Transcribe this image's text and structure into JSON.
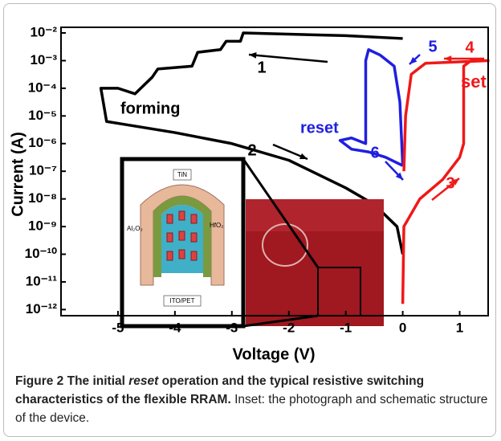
{
  "chart_data": {
    "type": "line",
    "log_y": true,
    "xlabel": "Voltage (V)",
    "ylabel": "Current (A)",
    "xlim": [
      -6,
      1.5
    ],
    "xticks": [
      -5,
      -4,
      -3,
      -2,
      -1,
      0,
      1
    ],
    "ylim": [
      0.016,
      6e-13
    ],
    "yticks": [
      {
        "value": 0.01,
        "label": "10⁻²"
      },
      {
        "value": 0.001,
        "label": "10⁻³"
      },
      {
        "value": 0.0001,
        "label": "10⁻⁴"
      },
      {
        "value": 1e-05,
        "label": "10⁻⁵"
      },
      {
        "value": 1e-06,
        "label": "10⁻⁶"
      },
      {
        "value": 1e-07,
        "label": "10⁻⁷"
      },
      {
        "value": 1e-08,
        "label": "10⁻⁸"
      },
      {
        "value": 1e-09,
        "label": "10⁻⁹"
      },
      {
        "value": 1e-10,
        "label": "10⁻¹⁰"
      },
      {
        "value": 1e-11,
        "label": "10⁻¹¹"
      },
      {
        "value": 1e-12,
        "label": "10⁻¹²"
      }
    ],
    "series": [
      {
        "name": "forming",
        "color": "#000000",
        "x": [
          0,
          -0.1,
          -0.5,
          -1,
          -2,
          -3,
          -4,
          -4.9,
          -5.2,
          -5.3,
          -5,
          -4.7,
          -4.4,
          -4.3,
          -3.7,
          -3.6,
          -3.2,
          -3.1,
          -2.85,
          -2.8,
          -1,
          0
        ],
        "values": [
          1e-10,
          1e-09,
          6.3e-09,
          2.5e-08,
          2.5e-07,
          1e-06,
          2.5e-06,
          5e-06,
          6.3e-06,
          0.0001,
          0.0001,
          6.3e-05,
          0.00025,
          0.0005,
          0.00063,
          0.002,
          0.0025,
          0.005,
          0.005,
          0.01,
          0.008,
          0.0063
        ]
      },
      {
        "name": "reset",
        "color": "#1f1fe0",
        "x": [
          0,
          -0.3,
          -0.6,
          -0.9,
          -1.1,
          -0.9,
          -0.65,
          -0.65,
          -0.6,
          -0.4,
          -0.15,
          -0.05,
          0
        ],
        "values": [
          1.6e-07,
          3.2e-07,
          5e-07,
          6.3e-07,
          1.3e-06,
          1.6e-06,
          1e-06,
          0.001,
          0.0025,
          0.0016,
          0.00063,
          3.2e-05,
          1.6e-07
        ]
      },
      {
        "name": "set",
        "color": "#f01818",
        "x": [
          0,
          0.02,
          0.3,
          0.7,
          1,
          1.07,
          1.07,
          1.2,
          1.5,
          0.4,
          0.15,
          0.05,
          0.02
        ],
        "values": [
          1.6e-12,
          1e-09,
          1e-08,
          5e-08,
          3.2e-07,
          1e-06,
          0.00063,
          0.001,
          0.001,
          0.0008,
          0.00032,
          1e-05,
          1e-07
        ]
      }
    ],
    "annotations": [
      "1",
      "2",
      "3",
      "4",
      "5",
      "6"
    ]
  },
  "inset": {
    "labels": [
      "TiN",
      "HfO₂",
      "Al₂O₃",
      "ITO/PET"
    ]
  },
  "caption": {
    "label": "Figure 2",
    "title_before": "The initial",
    "title_emph": "reset",
    "title_after": "operation and the typical resistive switching characteristics of the flexible RRAM.",
    "text": "Inset: the photograph and schematic structure of the device."
  }
}
